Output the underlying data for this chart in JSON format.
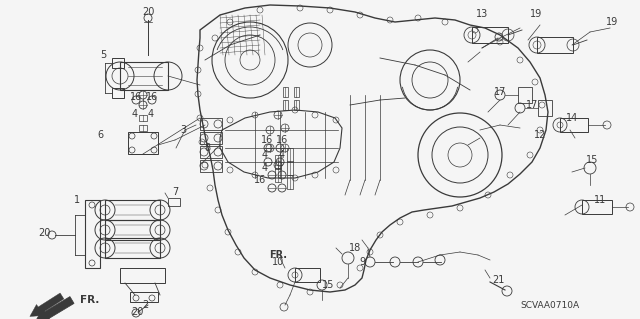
{
  "bg_color": "#f5f5f5",
  "diagram_color": "#3a3a3a",
  "watermark": "SCVAA0710A",
  "figsize": [
    6.4,
    3.19
  ],
  "dpi": 100
}
